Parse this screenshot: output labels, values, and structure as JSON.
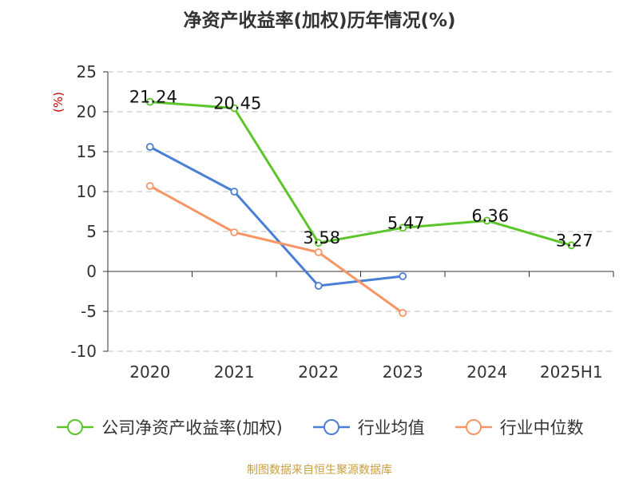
{
  "chart_data": {
    "type": "line",
    "title": "净资产收益率(加权)历年情况(%)",
    "ylabel": "(%)",
    "categories": [
      "2020",
      "2021",
      "2022",
      "2023",
      "2024",
      "2025H1"
    ],
    "ylim": [
      -10,
      25
    ],
    "yticks": [
      -10,
      -5,
      0,
      5,
      10,
      15,
      20,
      25
    ],
    "grid": true,
    "legend_position": "bottom",
    "series": [
      {
        "name": "公司净资产收益率(加权)",
        "color": "#5cc52a",
        "values": [
          21.24,
          20.45,
          3.58,
          5.47,
          6.36,
          3.27
        ],
        "labels": [
          "21.24",
          "20.45",
          "3.58",
          "5.47",
          "6.36",
          "3.27"
        ]
      },
      {
        "name": "行业均值",
        "color": "#4a7fd6",
        "values": [
          15.6,
          10.0,
          -1.8,
          -0.6,
          null,
          null
        ]
      },
      {
        "name": "行业中位数",
        "color": "#f59664",
        "values": [
          10.7,
          4.9,
          2.4,
          -5.2,
          null,
          null
        ]
      }
    ]
  },
  "footer": {
    "source": "制图数据来自恒生聚源数据库"
  }
}
